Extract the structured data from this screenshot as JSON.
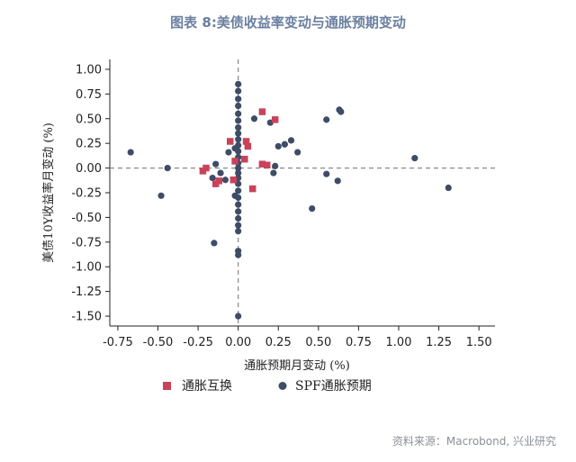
{
  "header": {
    "title": "图表 8:美债收益率变动与通胀预期变动"
  },
  "footer": {
    "source": "资料来源：Macrobond, 兴业研究"
  },
  "colors": {
    "swap": "#c8435a",
    "spf": "#3e4c66",
    "reference_line": "#888888",
    "title": "#6a7fa0"
  },
  "chart_data": {
    "type": "scatter",
    "title": "图表 8:美债收益率变动与通胀预期变动",
    "xlabel": "通胀预期月变动 (%)",
    "ylabel": "美债10Y收益率月变动 (%)",
    "xlim": [
      -0.8,
      1.6
    ],
    "ylim": [
      -1.6,
      1.1
    ],
    "xticks": [
      -0.75,
      -0.5,
      -0.25,
      0,
      0.25,
      0.5,
      0.75,
      1,
      1.25,
      1.5
    ],
    "xtick_labels": [
      "-0.75",
      "-0.50",
      "-0.25",
      "0.00",
      "0.25",
      "0.50",
      "0.75",
      "1.00",
      "1.25",
      "1.50"
    ],
    "yticks": [
      1,
      0.75,
      0.5,
      0.25,
      0,
      -0.25,
      -0.5,
      -0.75,
      -1,
      -1.25,
      -1.5
    ],
    "ytick_labels": [
      "1.00",
      "0.75",
      "0.50",
      "0.25",
      "0.00",
      "-0.25",
      "-0.50",
      "-0.75",
      "-1.00",
      "-1.25",
      "-1.50"
    ],
    "grid": false,
    "reference_lines": {
      "x": 0,
      "y": 0,
      "style": "dashed"
    },
    "legend_position": "bottom-left",
    "series": [
      {
        "name": "通胀互换",
        "marker": "square",
        "points": [
          [
            0.15,
            0.57
          ],
          [
            0.23,
            0.49
          ],
          [
            -0.05,
            0.27
          ],
          [
            0.05,
            0.27
          ],
          [
            0.06,
            0.22
          ],
          [
            -0.02,
            0.07
          ],
          [
            0.04,
            0.09
          ],
          [
            0.15,
            0.04
          ],
          [
            0.18,
            0.03
          ],
          [
            -0.2,
            0.0
          ],
          [
            -0.22,
            -0.03
          ],
          [
            -0.12,
            -0.13
          ],
          [
            -0.03,
            -0.12
          ],
          [
            -0.14,
            -0.16
          ],
          [
            0.09,
            -0.21
          ]
        ]
      },
      {
        "name": "SPF通胀预期",
        "marker": "circle",
        "points": [
          [
            0.0,
            0.85
          ],
          [
            0.0,
            0.78
          ],
          [
            0.0,
            0.7
          ],
          [
            0.0,
            0.63
          ],
          [
            0.0,
            0.55
          ],
          [
            0.0,
            0.48
          ],
          [
            0.0,
            0.41
          ],
          [
            0.0,
            0.35
          ],
          [
            0.0,
            0.29
          ],
          [
            0.0,
            0.23
          ],
          [
            0.0,
            0.17
          ],
          [
            0.0,
            0.11
          ],
          [
            0.0,
            0.05
          ],
          [
            0.0,
            0.0
          ],
          [
            0.0,
            -0.05
          ],
          [
            0.0,
            -0.1
          ],
          [
            0.0,
            -0.16
          ],
          [
            0.0,
            -0.23
          ],
          [
            0.0,
            -0.3
          ],
          [
            0.0,
            -0.37
          ],
          [
            0.0,
            -0.44
          ],
          [
            0.0,
            -0.51
          ],
          [
            0.0,
            -0.58
          ],
          [
            0.0,
            -0.64
          ],
          [
            0.0,
            -0.84
          ],
          [
            0.0,
            -0.88
          ],
          [
            0.0,
            -1.5
          ],
          [
            -0.02,
            0.2
          ],
          [
            -0.02,
            -0.28
          ],
          [
            -0.06,
            0.16
          ],
          [
            0.1,
            0.5
          ],
          [
            0.2,
            0.46
          ],
          [
            0.25,
            0.22
          ],
          [
            0.29,
            0.24
          ],
          [
            0.33,
            0.28
          ],
          [
            0.37,
            0.16
          ],
          [
            0.23,
            0.02
          ],
          [
            0.22,
            -0.05
          ],
          [
            -0.08,
            -0.12
          ],
          [
            -0.15,
            -0.76
          ],
          [
            -0.14,
            0.04
          ],
          [
            -0.11,
            -0.05
          ],
          [
            -0.16,
            -0.1
          ],
          [
            -0.67,
            0.16
          ],
          [
            -0.44,
            0.0
          ],
          [
            -0.48,
            -0.28
          ],
          [
            0.46,
            -0.41
          ],
          [
            0.55,
            0.49
          ],
          [
            0.63,
            0.59
          ],
          [
            0.64,
            0.57
          ],
          [
            0.55,
            -0.06
          ],
          [
            0.62,
            -0.13
          ],
          [
            1.1,
            0.1
          ],
          [
            1.31,
            -0.2
          ]
        ]
      }
    ]
  }
}
